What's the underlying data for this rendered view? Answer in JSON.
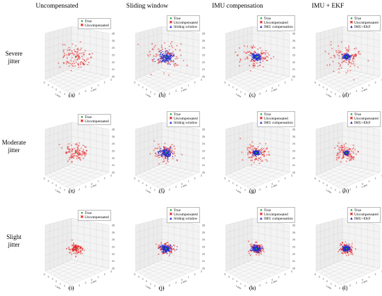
{
  "columns": [
    "Uncompensated",
    "Sliding window",
    "IMU compensation",
    "IMU + EKF"
  ],
  "rows": [
    {
      "line1": "Severe",
      "line2": "jitter"
    },
    {
      "line1": "Moderate",
      "line2": "jitter"
    },
    {
      "line1": "Slight",
      "line2": "jitter"
    }
  ],
  "legend_labels": {
    "true": "True",
    "uncomp": "Uncompensated",
    "sliding": "Sliding window",
    "imu": "IMU compensation",
    "ekf": "IMU+EKF"
  },
  "legend_labels_col4_last": "IMU+EKF",
  "panel_tags": [
    "(a)",
    "(b)",
    "(c)",
    "(d)",
    "(e)",
    "(f)",
    "(g)",
    "(h)",
    "(i)",
    "(j)",
    "(k)",
    "(l)"
  ],
  "colors": {
    "true": "#2ca02c",
    "uncompensated": "#e8181a",
    "compensated": "#1f2fd0",
    "pane": "#ececec",
    "grid": "#d6d6d6"
  },
  "chart_data": {
    "type": "scatter",
    "dimensions": 3,
    "grid": true,
    "legend_placement": "top-right",
    "series": [
      {
        "name": "True",
        "marker": "circle"
      },
      {
        "name": "Uncompensated",
        "marker": "x"
      },
      {
        "name": "Sliding window",
        "marker": "triangle",
        "columns": [
          1
        ]
      },
      {
        "name": "IMU compensation",
        "marker": "triangle",
        "columns": [
          2
        ]
      },
      {
        "name": "IMU+EKF",
        "marker": "triangle",
        "columns": [
          3
        ]
      }
    ],
    "z_ticks": [
      "20",
      "21",
      "22",
      "23",
      "24",
      "25",
      "26"
    ],
    "x_ticks": [
      "-3",
      "-2",
      "-1",
      "0",
      "1",
      "2",
      "3"
    ],
    "y_ticks": [
      "-3",
      "-2",
      "-1",
      "0",
      "1",
      "2",
      "3"
    ],
    "xlabel": "x axis",
    "ylabel": "y axis",
    "row_uncompensated_spread": [
      0.85,
      0.6,
      0.38
    ],
    "compensated_spread": [
      [
        0,
        0.34,
        0.22,
        0.16
      ],
      [
        0,
        0.3,
        0.16,
        0.11
      ],
      [
        0,
        0.24,
        0.2,
        0.17
      ]
    ]
  }
}
